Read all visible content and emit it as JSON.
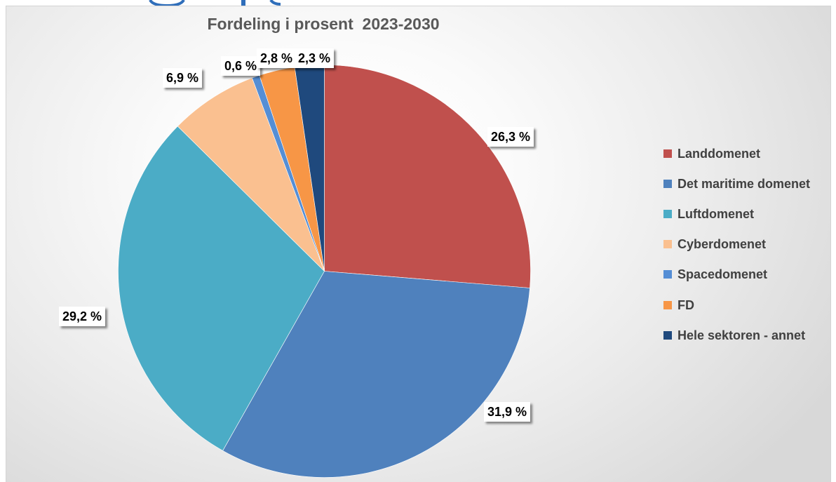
{
  "chart_data": {
    "type": "pie",
    "title": "Fordeling i prosent  2023-2030",
    "categories": [
      "Landdomenet",
      "Det maritime domenet",
      "Luftdomenet",
      "Cyberdomenet",
      "Spacedomenet",
      "FD",
      "Hele sektoren - annet"
    ],
    "values": [
      26.3,
      31.9,
      29.2,
      6.9,
      0.6,
      2.8,
      2.3
    ],
    "data_labels": [
      "26,3 %",
      "31,9 %",
      "29,2 %",
      "6,9 %",
      "0,6 %",
      "2,8 %",
      "2,3 %"
    ],
    "colors": [
      "#C0504D",
      "#4F81BD",
      "#4BACC6",
      "#FAC090",
      "#558ED5",
      "#F79646",
      "#1F497D"
    ],
    "legend_position": "right"
  }
}
